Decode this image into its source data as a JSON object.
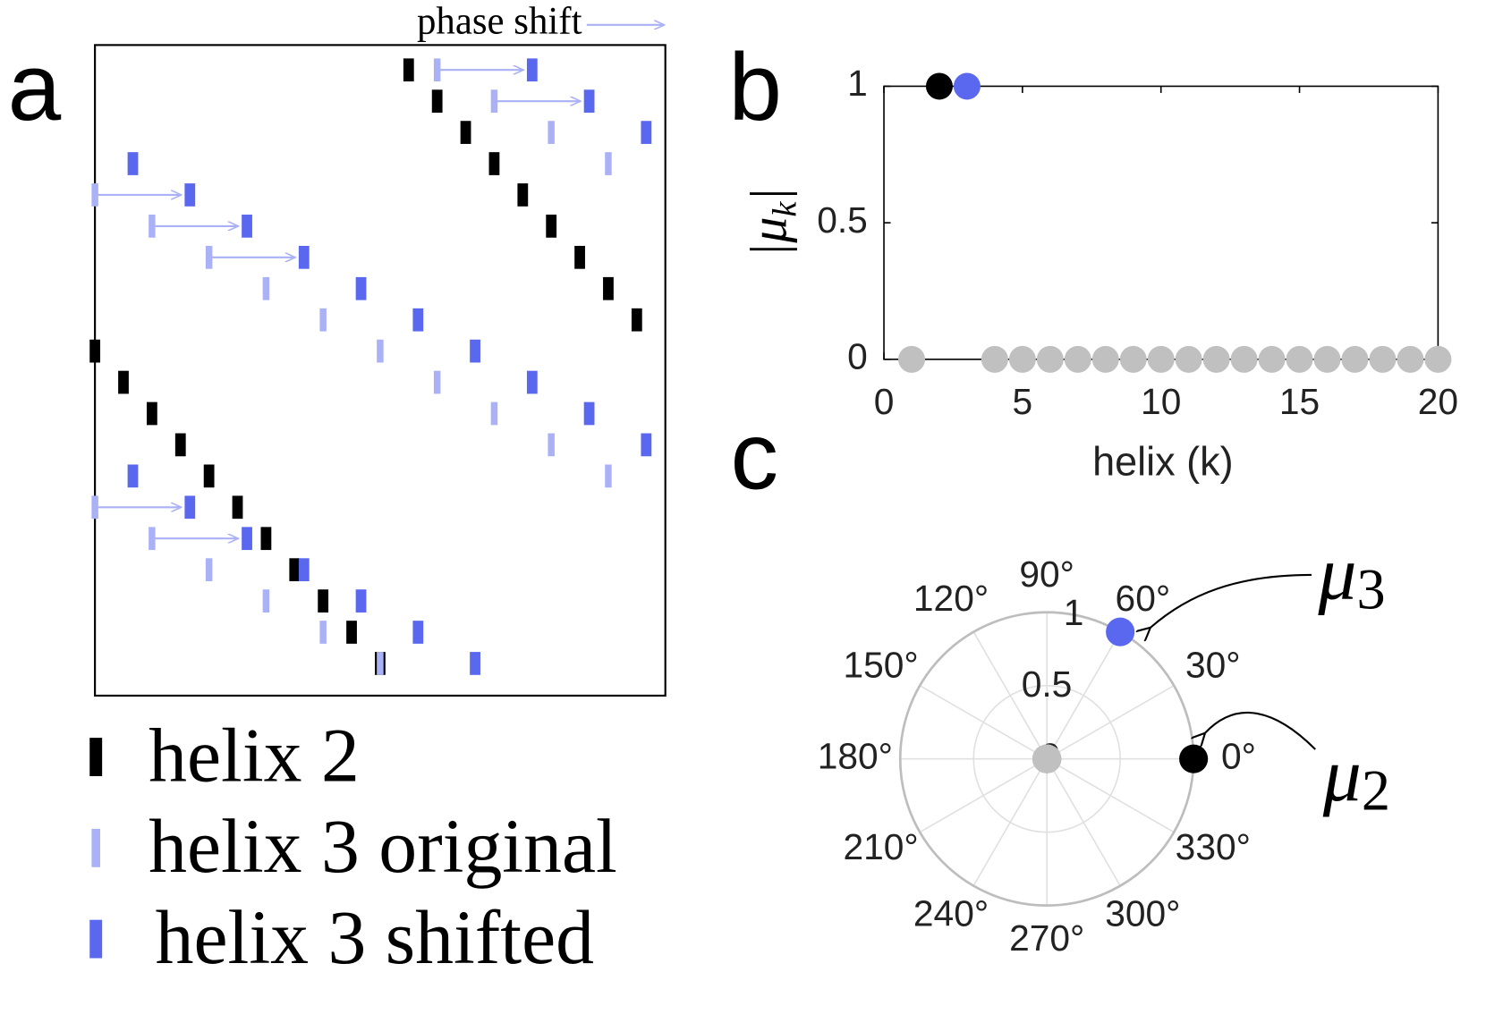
{
  "chart_data": [
    {
      "type": "raster",
      "panel_label": "a",
      "annotation": "phase shift",
      "xlim": [
        0,
        20
      ],
      "series": [
        {
          "name": "helix 2",
          "color": "#000000",
          "values": [
            11,
            12,
            13,
            14,
            15,
            16,
            17,
            18,
            19,
            0,
            1,
            2,
            3,
            4,
            5,
            6,
            7,
            8,
            9,
            10
          ]
        },
        {
          "name": "helix 3 original",
          "color": "#aab1f6",
          "values": [
            12,
            14,
            16,
            18,
            0,
            2,
            4,
            6,
            8,
            10,
            12,
            14,
            16,
            18,
            0,
            2,
            4,
            6,
            8,
            10
          ]
        },
        {
          "name": "helix 3 shifted",
          "color": "#5a68f0",
          "values": [
            15.33,
            17.33,
            19.33,
            1.33,
            3.33,
            5.33,
            7.33,
            9.33,
            11.33,
            13.33,
            15.33,
            17.33,
            19.33,
            1.33,
            3.33,
            5.33,
            7.33,
            9.33,
            11.33,
            13.33
          ]
        }
      ],
      "arrow_rows": [
        0,
        1,
        4,
        5,
        6,
        14,
        15
      ]
    },
    {
      "type": "scatter",
      "panel_label": "b",
      "x": [
        1,
        2,
        3,
        4,
        5,
        6,
        7,
        8,
        9,
        10,
        11,
        12,
        13,
        14,
        15,
        16,
        17,
        18,
        19,
        20
      ],
      "values": [
        0,
        1,
        1,
        0,
        0,
        0,
        0,
        0,
        0,
        0,
        0,
        0,
        0,
        0,
        0,
        0,
        0,
        0,
        0,
        0
      ],
      "colors": [
        "#c0c0c0",
        "#000000",
        "#5a68f0",
        "#c0c0c0",
        "#c0c0c0",
        "#c0c0c0",
        "#c0c0c0",
        "#c0c0c0",
        "#c0c0c0",
        "#c0c0c0",
        "#c0c0c0",
        "#c0c0c0",
        "#c0c0c0",
        "#c0c0c0",
        "#c0c0c0",
        "#c0c0c0",
        "#c0c0c0",
        "#c0c0c0",
        "#c0c0c0",
        "#c0c0c0"
      ],
      "xlim": [
        0,
        20
      ],
      "xticks": [
        0,
        5,
        10,
        15,
        20
      ],
      "ylim": [
        0,
        1
      ],
      "yticks": [
        0,
        0.5,
        1
      ],
      "xlabel": "helix (k)",
      "ylabel": [
        "|μ",
        "k",
        "|"
      ]
    },
    {
      "type": "polar",
      "panel_label": "c",
      "r": [
        0,
        1,
        1,
        0,
        0,
        0,
        0,
        0,
        0,
        0,
        0,
        0,
        0,
        0,
        0,
        0,
        0,
        0,
        0,
        0
      ],
      "theta": [
        0,
        0,
        60,
        0,
        0,
        0,
        0,
        0,
        0,
        0,
        0,
        0,
        0,
        0,
        0,
        0,
        0,
        0,
        0,
        0
      ],
      "colors": [
        "#c0c0c0",
        "#000000",
        "#5a68f0",
        "#c0c0c0",
        "#c0c0c0",
        "#c0c0c0",
        "#c0c0c0",
        "#c0c0c0",
        "#c0c0c0",
        "#c0c0c0",
        "#c0c0c0",
        "#c0c0c0",
        "#c0c0c0",
        "#c0c0c0",
        "#c0c0c0",
        "#c0c0c0",
        "#c0c0c0",
        "#c0c0c0",
        "#c0c0c0",
        "#c0c0c0"
      ],
      "rlim": [
        0,
        1
      ],
      "rticks": [
        0,
        0.5,
        1
      ],
      "thetaticks": [
        {
          "value": 0,
          "label": "0°"
        },
        {
          "value": 30,
          "label": "30°"
        },
        {
          "value": 60,
          "label": "60°"
        },
        {
          "value": 90,
          "label": "90°"
        },
        {
          "value": 120,
          "label": "120°"
        },
        {
          "value": 150,
          "label": "150°"
        },
        {
          "value": 180,
          "label": "180°"
        },
        {
          "value": 210,
          "label": "210°"
        },
        {
          "value": 240,
          "label": "240°"
        },
        {
          "value": 270,
          "label": "270°"
        },
        {
          "value": 300,
          "label": "300°"
        },
        {
          "value": 330,
          "label": "330°"
        }
      ],
      "annotations": [
        [
          "μ",
          "3"
        ],
        [
          "μ",
          "2"
        ]
      ]
    }
  ]
}
